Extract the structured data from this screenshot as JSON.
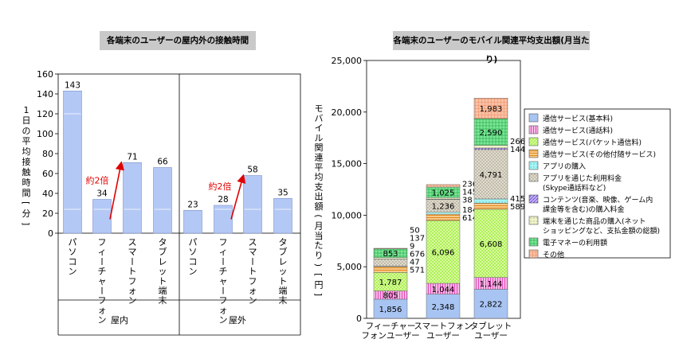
{
  "chart_data": [
    {
      "type": "bar",
      "title": "各端末のユーザーの屋内外の接触時間",
      "ylabel": "1日の平均接触時間[分]",
      "ylim": [
        0,
        160
      ],
      "yticks": [
        0,
        20,
        40,
        60,
        80,
        100,
        120,
        140,
        160
      ],
      "groups": [
        {
          "name": "屋内",
          "categories": [
            "パソコン",
            "フィーチャーフォン",
            "スマートフォン",
            "タブレット端末"
          ],
          "values": [
            143,
            34,
            71,
            66
          ]
        },
        {
          "name": "屋外",
          "categories": [
            "パソコン",
            "フィーチャーフォン",
            "スマートフォン",
            "タブレット端末"
          ],
          "values": [
            23,
            28,
            58,
            35
          ]
        }
      ],
      "annotations": [
        "約2倍",
        "約2倍"
      ],
      "colors": {
        "bar": "#b3c8f5",
        "bar_stroke": "#7f93c8",
        "annotation": "#e00000"
      }
    },
    {
      "type": "bar",
      "stacked": true,
      "title": "各端末のユーザーのモバイル関連平均支出額(月当たり)",
      "ylabel": "モバイル関連平均支出額(月当たり)[円]",
      "ylim": [
        0,
        25000
      ],
      "ytick_labels": [
        "0",
        "5,000",
        "10,000",
        "15,000",
        "20,000",
        "25,000"
      ],
      "categories": [
        "フィーチャーフォンユーザー",
        "スマートフォンユーザー",
        "タブレットユーザー"
      ],
      "category_lines": [
        [
          "フィーチャー",
          "フォンユーザー"
        ],
        [
          "スマートフォン",
          "ユーザー"
        ],
        [
          "タブレット",
          "ユーザー"
        ]
      ],
      "series": [
        {
          "name": "通信サービス(基本料)",
          "values": [
            1856,
            2348,
            2822
          ],
          "labels": [
            "1,856",
            "2,348",
            "2,822"
          ],
          "color": "#a8c4f2"
        },
        {
          "name": "通信サービス(通話料)",
          "values": [
            805,
            1044,
            1144
          ],
          "labels": [
            "805",
            "1,044",
            "1,144"
          ],
          "color": "#f28ad2"
        },
        {
          "name": "通信サービス(パケット通信料)",
          "values": [
            1787,
            6096,
            6608
          ],
          "labels": [
            "1,787",
            "6,096",
            "6,608"
          ],
          "color": "#aef05a"
        },
        {
          "name": "通信サービス(その他付随サービス)",
          "values": [
            571,
            614,
            589
          ],
          "labels": [
            "571",
            "614",
            "589"
          ],
          "color": "#f5a94a"
        },
        {
          "name": "アプリの購入",
          "values": [
            47,
            184,
            415
          ],
          "labels": [
            "47",
            "184",
            "415"
          ],
          "color": "#8ef0f2"
        },
        {
          "name": "アプリを通じた利用料金(Skype通話料など)",
          "values": [
            676,
            1236,
            4791
          ],
          "labels": [
            "676",
            "1,236",
            "4,791"
          ],
          "color": "#d9d2c2"
        },
        {
          "name": "コンテンツ(音楽、映像、ゲーム内課金等を含む)の購入料金",
          "values": [
            9,
            38,
            144
          ],
          "labels": [
            "9",
            "38",
            "144"
          ],
          "color": "#b196f0"
        },
        {
          "name": "端末を通じた商品の購入(ネットショッピングなど、支払金額の総額)",
          "values": [
            137,
            145,
            266
          ],
          "labels": [
            "137",
            "145",
            "266"
          ],
          "color": "#e8eec0"
        },
        {
          "name": "電子マネーの利用額",
          "values": [
            853,
            1025,
            2590
          ],
          "labels": [
            "853",
            "1,025",
            "2,590"
          ],
          "color": "#7ee89a"
        },
        {
          "name": "その他",
          "values": [
            50,
            236,
            1983
          ],
          "labels": [
            "50",
            "236",
            "1,983"
          ],
          "color": "#f5b08c"
        }
      ],
      "legend_lines": [
        [
          "通信サービス(基本料)"
        ],
        [
          "通信サービス(通話料)"
        ],
        [
          "通信サービス(パケット通信料)"
        ],
        [
          "通信サービス(その他付随サービス)"
        ],
        [
          "アプリの購入"
        ],
        [
          "アプリを通じた利用料金",
          "(Skype通話料など)"
        ],
        [
          "コンテンツ(音楽、映像、ゲーム内",
          "課金等を含む)の購入料金"
        ],
        [
          "端末を通じた商品の購入(ネット",
          "ショッピングなど、支払金額の総額)"
        ],
        [
          "電子マネーの利用額"
        ],
        [
          "その他"
        ]
      ],
      "legend_position": "right"
    }
  ]
}
